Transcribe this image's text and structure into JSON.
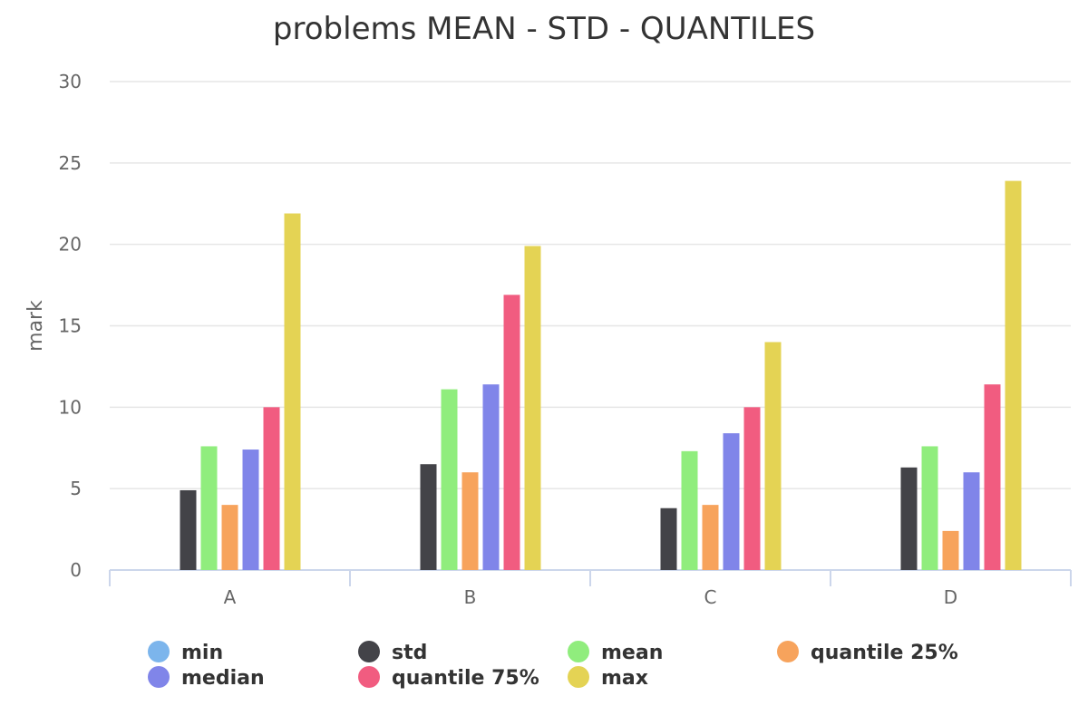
{
  "chart_data": {
    "type": "bar",
    "title": "problems MEAN - STD - QUANTILES",
    "xlabel": "",
    "ylabel": "mark",
    "ylim": [
      0,
      30
    ],
    "yticks": [
      0,
      5,
      10,
      15,
      20,
      25,
      30
    ],
    "grid": true,
    "legend_position": "bottom",
    "categories": [
      "A",
      "B",
      "C",
      "D"
    ],
    "series": [
      {
        "name": "min",
        "color": "#7cb5ec",
        "values": [
          0,
          0,
          0,
          0
        ]
      },
      {
        "name": "std",
        "color": "#434348",
        "values": [
          4.9,
          6.5,
          3.8,
          6.3
        ]
      },
      {
        "name": "mean",
        "color": "#90ed7d",
        "values": [
          7.6,
          11.1,
          7.3,
          7.6
        ]
      },
      {
        "name": "quantile 25%",
        "color": "#f7a35c",
        "values": [
          4.0,
          6.0,
          4.0,
          2.4
        ]
      },
      {
        "name": "median",
        "color": "#8085e9",
        "values": [
          7.4,
          11.4,
          8.4,
          6.0
        ]
      },
      {
        "name": "quantile 75%",
        "color": "#f15c80",
        "values": [
          10.0,
          16.9,
          10.0,
          11.4
        ]
      },
      {
        "name": "max",
        "color": "#e4d354",
        "values": [
          21.9,
          19.9,
          14.0,
          23.9
        ]
      }
    ]
  }
}
